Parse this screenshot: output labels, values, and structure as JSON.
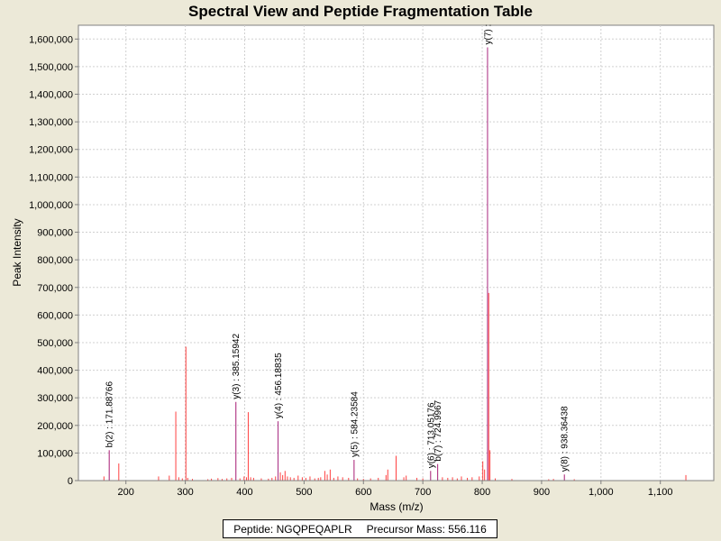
{
  "chart_data": {
    "type": "bar",
    "title": "Spectral View and Peptide Fragmentation Table",
    "xlabel": "Mass (m/z)",
    "ylabel": "Peak Intensity",
    "xlim": [
      120,
      1190
    ],
    "ylim": [
      0,
      1650000
    ],
    "xticks": [
      200,
      300,
      400,
      500,
      600,
      700,
      800,
      900,
      1000,
      1100
    ],
    "xtick_labels": [
      "200",
      "300",
      "400",
      "500",
      "600",
      "700",
      "800",
      "900",
      "1,000",
      "1,100"
    ],
    "yticks": [
      0,
      100000,
      200000,
      300000,
      400000,
      500000,
      600000,
      700000,
      800000,
      900000,
      1000000,
      1100000,
      1200000,
      1300000,
      1400000,
      1500000,
      1600000
    ],
    "ytick_labels": [
      "0",
      "100,000",
      "200,000",
      "300,000",
      "400,000",
      "500,000",
      "600,000",
      "700,000",
      "800,000",
      "900,000",
      "1,000,000",
      "1,100,000",
      "1,200,000",
      "1,300,000",
      "1,400,000",
      "1,500,000",
      "1,600,000"
    ],
    "grid": true,
    "bar_color": "#ff0000",
    "annotation_color": "#0000ff",
    "peaks": [
      {
        "x": 163,
        "y": 15000
      },
      {
        "x": 171.9,
        "y": 110000
      },
      {
        "x": 188,
        "y": 62000
      },
      {
        "x": 255,
        "y": 15000
      },
      {
        "x": 273,
        "y": 18000
      },
      {
        "x": 284,
        "y": 250000
      },
      {
        "x": 289,
        "y": 12000
      },
      {
        "x": 295,
        "y": 8000
      },
      {
        "x": 301,
        "y": 485000
      },
      {
        "x": 304,
        "y": 10000
      },
      {
        "x": 312,
        "y": 6000
      },
      {
        "x": 338,
        "y": 5000
      },
      {
        "x": 344,
        "y": 7000
      },
      {
        "x": 355,
        "y": 9000
      },
      {
        "x": 362,
        "y": 6000
      },
      {
        "x": 370,
        "y": 8000
      },
      {
        "x": 378,
        "y": 10000
      },
      {
        "x": 385.2,
        "y": 285000
      },
      {
        "x": 392,
        "y": 8000
      },
      {
        "x": 399,
        "y": 15000
      },
      {
        "x": 403,
        "y": 12000
      },
      {
        "x": 406,
        "y": 248000
      },
      {
        "x": 410,
        "y": 12000
      },
      {
        "x": 415,
        "y": 10000
      },
      {
        "x": 428,
        "y": 8000
      },
      {
        "x": 440,
        "y": 7000
      },
      {
        "x": 446,
        "y": 10000
      },
      {
        "x": 452,
        "y": 15000
      },
      {
        "x": 456.2,
        "y": 215000
      },
      {
        "x": 460,
        "y": 30000
      },
      {
        "x": 464,
        "y": 20000
      },
      {
        "x": 468,
        "y": 35000
      },
      {
        "x": 472,
        "y": 15000
      },
      {
        "x": 477,
        "y": 12000
      },
      {
        "x": 483,
        "y": 10000
      },
      {
        "x": 490,
        "y": 18000
      },
      {
        "x": 497,
        "y": 12000
      },
      {
        "x": 503,
        "y": 10000
      },
      {
        "x": 510,
        "y": 15000
      },
      {
        "x": 518,
        "y": 8000
      },
      {
        "x": 524,
        "y": 10000
      },
      {
        "x": 528,
        "y": 12000
      },
      {
        "x": 535,
        "y": 35000
      },
      {
        "x": 539,
        "y": 22000
      },
      {
        "x": 544,
        "y": 40000
      },
      {
        "x": 550,
        "y": 10000
      },
      {
        "x": 557,
        "y": 15000
      },
      {
        "x": 565,
        "y": 12000
      },
      {
        "x": 575,
        "y": 10000
      },
      {
        "x": 584.2,
        "y": 75000
      },
      {
        "x": 590,
        "y": 8000
      },
      {
        "x": 600,
        "y": 6000
      },
      {
        "x": 612,
        "y": 8000
      },
      {
        "x": 625,
        "y": 10000
      },
      {
        "x": 638,
        "y": 20000
      },
      {
        "x": 641,
        "y": 40000
      },
      {
        "x": 655,
        "y": 90000
      },
      {
        "x": 668,
        "y": 12000
      },
      {
        "x": 672,
        "y": 18000
      },
      {
        "x": 690,
        "y": 10000
      },
      {
        "x": 700,
        "y": 8000
      },
      {
        "x": 713.1,
        "y": 35000
      },
      {
        "x": 725,
        "y": 60000
      },
      {
        "x": 733,
        "y": 12000
      },
      {
        "x": 742,
        "y": 10000
      },
      {
        "x": 750,
        "y": 12000
      },
      {
        "x": 758,
        "y": 8000
      },
      {
        "x": 765,
        "y": 15000
      },
      {
        "x": 775,
        "y": 10000
      },
      {
        "x": 783,
        "y": 12000
      },
      {
        "x": 795,
        "y": 15000
      },
      {
        "x": 801,
        "y": 70000
      },
      {
        "x": 804,
        "y": 40000
      },
      {
        "x": 809,
        "y": 1570000
      },
      {
        "x": 811,
        "y": 680000
      },
      {
        "x": 813,
        "y": 110000
      },
      {
        "x": 822,
        "y": 8000
      },
      {
        "x": 850,
        "y": 6000
      },
      {
        "x": 912,
        "y": 5000
      },
      {
        "x": 920,
        "y": 6000
      },
      {
        "x": 938.4,
        "y": 22000
      },
      {
        "x": 955,
        "y": 5000
      },
      {
        "x": 1143,
        "y": 20000
      }
    ],
    "annotations": [
      {
        "x": 171.9,
        "y": 110000,
        "label": "b(2) : 171.88766"
      },
      {
        "x": 385.2,
        "y": 285000,
        "label": "y(3) : 385.15942"
      },
      {
        "x": 456.2,
        "y": 215000,
        "label": "y(4) : 456.18835"
      },
      {
        "x": 584.2,
        "y": 75000,
        "label": "y(5) : 584.23584"
      },
      {
        "x": 713.1,
        "y": 35000,
        "label": "y(6) : 713.05176"
      },
      {
        "x": 725,
        "y": 60000,
        "label": "b(7) : 724.9967"
      },
      {
        "x": 809,
        "y": 1570000,
        "label": "y(7) :"
      },
      {
        "x": 938.4,
        "y": 22000,
        "label": "y(8) : 938.36438"
      }
    ]
  },
  "info": {
    "peptide": "Peptide: NGQPEQAPLR",
    "precursor": "Precursor Mass: 556.116"
  }
}
